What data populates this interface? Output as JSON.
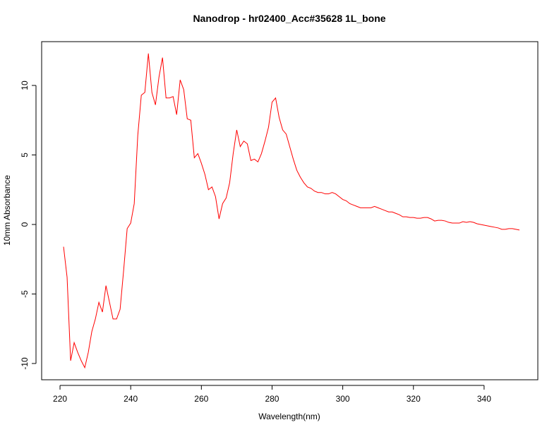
{
  "chart_data": {
    "type": "line",
    "title": "Nanodrop - hr02400_Acc#35628 1L_bone",
    "x_label": "Wavelength(nm)",
    "y_label": "10mm Absorbance",
    "x": [
      221,
      222,
      223,
      224,
      225,
      226,
      227,
      228,
      229,
      230,
      231,
      232,
      233,
      234,
      235,
      236,
      237,
      238,
      239,
      240,
      241,
      242,
      243,
      244,
      245,
      246,
      247,
      248,
      249,
      250,
      251,
      252,
      253,
      254,
      255,
      256,
      257,
      258,
      259,
      260,
      261,
      262,
      263,
      264,
      265,
      266,
      267,
      268,
      269,
      270,
      271,
      272,
      273,
      274,
      275,
      276,
      277,
      278,
      279,
      280,
      281,
      282,
      283,
      284,
      285,
      286,
      287,
      288,
      289,
      290,
      291,
      292,
      293,
      294,
      295,
      296,
      297,
      298,
      299,
      300,
      301,
      302,
      303,
      304,
      305,
      306,
      307,
      308,
      309,
      310,
      311,
      312,
      313,
      314,
      315,
      316,
      317,
      318,
      319,
      320,
      321,
      322,
      323,
      324,
      325,
      326,
      327,
      328,
      329,
      330,
      331,
      332,
      333,
      334,
      335,
      336,
      337,
      338,
      339,
      340,
      341,
      342,
      343,
      344,
      345,
      346,
      347,
      348,
      349,
      350
    ],
    "series": [
      {
        "color": "#ff0000",
        "values": [
          -1.6,
          -3.8,
          -9.8,
          -8.5,
          -9.2,
          -9.8,
          -10.3,
          -9.2,
          -7.7,
          -6.8,
          -5.6,
          -6.3,
          -4.4,
          -5.6,
          -6.8,
          -6.8,
          -6.1,
          -3.3,
          -0.3,
          0.1,
          1.5,
          6.4,
          9.3,
          9.5,
          12.3,
          9.5,
          8.6,
          10.6,
          12.0,
          9.1,
          9.1,
          9.2,
          7.9,
          10.4,
          9.7,
          7.6,
          7.5,
          4.8,
          5.1,
          4.4,
          3.6,
          2.5,
          2.7,
          2.0,
          0.4,
          1.5,
          1.9,
          3.0,
          5.1,
          6.8,
          5.6,
          6.0,
          5.8,
          4.6,
          4.7,
          4.5,
          5.1,
          6.0,
          7.0,
          8.8,
          9.1,
          7.7,
          6.8,
          6.5,
          5.6,
          4.7,
          3.9,
          3.4,
          3.0,
          2.7,
          2.6,
          2.4,
          2.3,
          2.3,
          2.2,
          2.2,
          2.3,
          2.2,
          2.0,
          1.8,
          1.7,
          1.5,
          1.4,
          1.3,
          1.2,
          1.2,
          1.2,
          1.2,
          1.3,
          1.2,
          1.1,
          1.0,
          0.9,
          0.9,
          0.8,
          0.7,
          0.55,
          0.55,
          0.5,
          0.5,
          0.45,
          0.45,
          0.5,
          0.5,
          0.4,
          0.25,
          0.3,
          0.3,
          0.25,
          0.15,
          0.1,
          0.1,
          0.1,
          0.2,
          0.15,
          0.2,
          0.15,
          0.05,
          0,
          -0.05,
          -0.1,
          -0.15,
          -0.2,
          -0.25,
          -0.35,
          -0.35,
          -0.3,
          -0.3,
          -0.35,
          -0.4
        ]
      }
    ],
    "xlim": [
      214.8,
      355.2
    ],
    "ylim": [
      -11.17,
      13.15
    ],
    "xticks": [
      220,
      240,
      260,
      280,
      300,
      320,
      340
    ],
    "yticks": [
      -10,
      -5,
      0,
      5,
      10
    ],
    "grid": false
  }
}
